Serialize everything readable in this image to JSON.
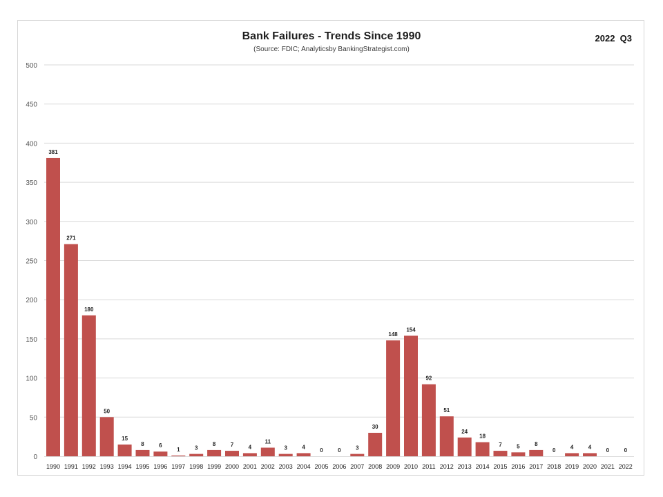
{
  "chart_data": {
    "type": "bar",
    "title": "Bank Failures - Trends Since 1990",
    "subtitle": "(Source: FDIC; Analyticsby BankingStrategist.com)",
    "period": "2022  Q3",
    "categories": [
      "1990",
      "1991",
      "1992",
      "1993",
      "1994",
      "1995",
      "1996",
      "1997",
      "1998",
      "1999",
      "2000",
      "2001",
      "2002",
      "2003",
      "2004",
      "2005",
      "2006",
      "2007",
      "2008",
      "2009",
      "2010",
      "2011",
      "2012",
      "2013",
      "2014",
      "2015",
      "2016",
      "2017",
      "2018",
      "2019",
      "2020",
      "2021",
      "2022"
    ],
    "values": [
      381,
      271,
      180,
      50,
      15,
      8,
      6,
      1,
      3,
      8,
      7,
      4,
      11,
      3,
      4,
      0,
      0,
      3,
      30,
      148,
      154,
      92,
      51,
      24,
      18,
      7,
      5,
      8,
      0,
      4,
      4,
      0,
      0
    ],
    "ylim": [
      0,
      500
    ],
    "yticks": [
      0,
      50,
      100,
      150,
      200,
      250,
      300,
      350,
      400,
      450,
      500
    ],
    "xlabel": "",
    "ylabel": "",
    "grid": true,
    "bar_color": "#c0504d"
  }
}
